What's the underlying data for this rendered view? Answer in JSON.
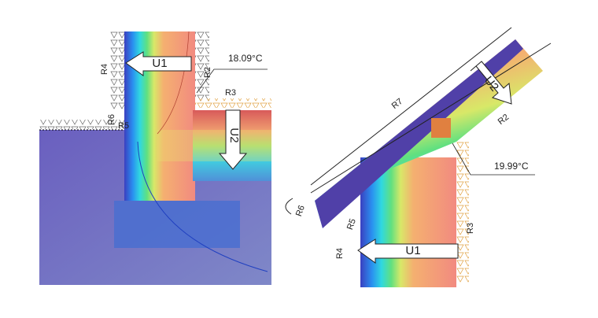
{
  "left": {
    "labels": [
      "R4",
      "U1",
      "18.09°C",
      "R2",
      "R3",
      "R6",
      "R5",
      "U2"
    ]
  },
  "right": {
    "labels": [
      "R7",
      "U2",
      "R2",
      "19.99°C",
      "R6",
      "R5",
      "R3",
      "R4",
      "U1"
    ]
  }
}
